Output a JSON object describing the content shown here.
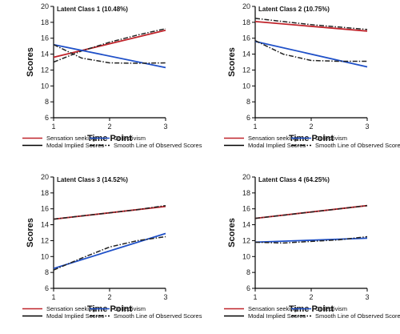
{
  "colors": {
    "sensation": "#c0242b",
    "collectivism": "#1f50c8",
    "axis": "#000000"
  },
  "chart_data": [
    {
      "type": "line",
      "title": "Latent Class 1 (10.48%)",
      "xlabel": "Time Point",
      "ylabel": "Scores",
      "xlim": [
        1,
        3
      ],
      "ylim": [
        6,
        20
      ],
      "xticks": [
        1,
        2,
        3
      ],
      "yticks": [
        6,
        8,
        10,
        12,
        14,
        16,
        18,
        20
      ],
      "series": [
        {
          "name": "Sensation seeking",
          "kind": "modal",
          "color": "#c0242b",
          "x": [
            1,
            3
          ],
          "y": [
            13.6,
            17.0
          ]
        },
        {
          "name": "Sensation seeking",
          "kind": "observed",
          "color": "#c0242b",
          "x": [
            1,
            1.5,
            2,
            2.5,
            3
          ],
          "y": [
            13.0,
            14.4,
            15.5,
            16.4,
            17.2
          ]
        },
        {
          "name": "Collectivism",
          "kind": "modal",
          "color": "#1f50c8",
          "x": [
            1,
            3
          ],
          "y": [
            15.2,
            12.3
          ]
        },
        {
          "name": "Collectivism",
          "kind": "observed",
          "color": "#1f50c8",
          "x": [
            1,
            1.5,
            2,
            2.5,
            3
          ],
          "y": [
            15.2,
            13.5,
            12.9,
            12.85,
            12.9
          ]
        }
      ],
      "legend": [
        {
          "label": "Sensation seeking",
          "style": "solid",
          "color": "#c0242b"
        },
        {
          "label": "Collectivism",
          "style": "solid",
          "color": "#1f50c8"
        },
        {
          "label": "Modal Implied Scores",
          "style": "solid",
          "color": "#000000"
        },
        {
          "label": "Smooth Line of Observed Scores",
          "style": "dashdot",
          "color": "#000000"
        }
      ]
    },
    {
      "type": "line",
      "title": "Latent Class 2 (10.75%)",
      "xlabel": "Time Point",
      "ylabel": "Scores",
      "xlim": [
        1,
        3
      ],
      "ylim": [
        6,
        20
      ],
      "xticks": [
        1,
        2,
        3
      ],
      "yticks": [
        6,
        8,
        10,
        12,
        14,
        16,
        18,
        20
      ],
      "series": [
        {
          "name": "Sensation seeking",
          "kind": "modal",
          "color": "#c0242b",
          "x": [
            1,
            3
          ],
          "y": [
            18.1,
            16.9
          ]
        },
        {
          "name": "Sensation seeking",
          "kind": "observed",
          "color": "#c0242b",
          "x": [
            1,
            1.5,
            2,
            2.5,
            3
          ],
          "y": [
            18.5,
            18.1,
            17.7,
            17.4,
            17.1
          ]
        },
        {
          "name": "Collectivism",
          "kind": "modal",
          "color": "#1f50c8",
          "x": [
            1,
            3
          ],
          "y": [
            15.6,
            12.4
          ]
        },
        {
          "name": "Collectivism",
          "kind": "observed",
          "color": "#1f50c8",
          "x": [
            1,
            1.5,
            2,
            2.5,
            3
          ],
          "y": [
            15.7,
            14.0,
            13.2,
            13.1,
            13.1
          ]
        }
      ],
      "legend": [
        {
          "label": "Sensation seeking",
          "style": "solid",
          "color": "#c0242b"
        },
        {
          "label": "Collectivism",
          "style": "solid",
          "color": "#1f50c8"
        },
        {
          "label": "Modal Implied Scores",
          "style": "solid",
          "color": "#000000"
        },
        {
          "label": "Smooth Line of Observed Scores",
          "style": "dashdot",
          "color": "#000000"
        }
      ]
    },
    {
      "type": "line",
      "title": "Latent Class 3 (14.52%)",
      "xlabel": "Time Point",
      "ylabel": "Scores",
      "xlim": [
        1,
        3
      ],
      "ylim": [
        6,
        20
      ],
      "xticks": [
        1,
        2,
        3
      ],
      "yticks": [
        6,
        8,
        10,
        12,
        14,
        16,
        18,
        20
      ],
      "series": [
        {
          "name": "Sensation seeking",
          "kind": "modal",
          "color": "#c0242b",
          "x": [
            1,
            3
          ],
          "y": [
            14.7,
            16.3
          ]
        },
        {
          "name": "Sensation seeking",
          "kind": "observed",
          "color": "#c0242b",
          "x": [
            1,
            1.5,
            2,
            2.5,
            3
          ],
          "y": [
            14.7,
            15.1,
            15.5,
            15.9,
            16.4
          ]
        },
        {
          "name": "Collectivism",
          "kind": "modal",
          "color": "#1f50c8",
          "x": [
            1,
            3
          ],
          "y": [
            8.5,
            12.9
          ]
        },
        {
          "name": "Collectivism",
          "kind": "observed",
          "color": "#1f50c8",
          "x": [
            1,
            1.5,
            2,
            2.5,
            3
          ],
          "y": [
            8.3,
            9.8,
            11.2,
            12.0,
            12.5
          ]
        }
      ],
      "legend": [
        {
          "label": "Sensation seeking",
          "style": "solid",
          "color": "#c0242b"
        },
        {
          "label": "Collectivism",
          "style": "solid",
          "color": "#1f50c8"
        },
        {
          "label": "Modal Implied Scores",
          "style": "solid",
          "color": "#000000"
        },
        {
          "label": "Smooth Line of Observed Scores",
          "style": "dashdot",
          "color": "#000000"
        }
      ]
    },
    {
      "type": "line",
      "title": "Latent Class 4 (64.25%)",
      "xlabel": "Time Point",
      "ylabel": "Scores",
      "xlim": [
        1,
        3
      ],
      "ylim": [
        6,
        20
      ],
      "xticks": [
        1,
        2,
        3
      ],
      "yticks": [
        6,
        8,
        10,
        12,
        14,
        16,
        18,
        20
      ],
      "series": [
        {
          "name": "Sensation seeking",
          "kind": "modal",
          "color": "#c0242b",
          "x": [
            1,
            3
          ],
          "y": [
            14.8,
            16.4
          ]
        },
        {
          "name": "Sensation seeking",
          "kind": "observed",
          "color": "#c0242b",
          "x": [
            1,
            1.5,
            2,
            2.5,
            3
          ],
          "y": [
            14.8,
            15.2,
            15.6,
            16.0,
            16.4
          ]
        },
        {
          "name": "Collectivism",
          "kind": "modal",
          "color": "#1f50c8",
          "x": [
            1,
            3
          ],
          "y": [
            11.8,
            12.3
          ]
        },
        {
          "name": "Collectivism",
          "kind": "observed",
          "color": "#1f50c8",
          "x": [
            1,
            1.5,
            2,
            2.5,
            3
          ],
          "y": [
            11.8,
            11.7,
            11.9,
            12.1,
            12.5
          ]
        }
      ],
      "legend": [
        {
          "label": "Sensation seeking",
          "style": "solid",
          "color": "#c0242b"
        },
        {
          "label": "Collectivism",
          "style": "solid",
          "color": "#1f50c8"
        },
        {
          "label": "Modal Implied Scores",
          "style": "solid",
          "color": "#000000"
        },
        {
          "label": "Smooth Line of Observed Scores",
          "style": "dashdot",
          "color": "#000000"
        }
      ]
    }
  ]
}
